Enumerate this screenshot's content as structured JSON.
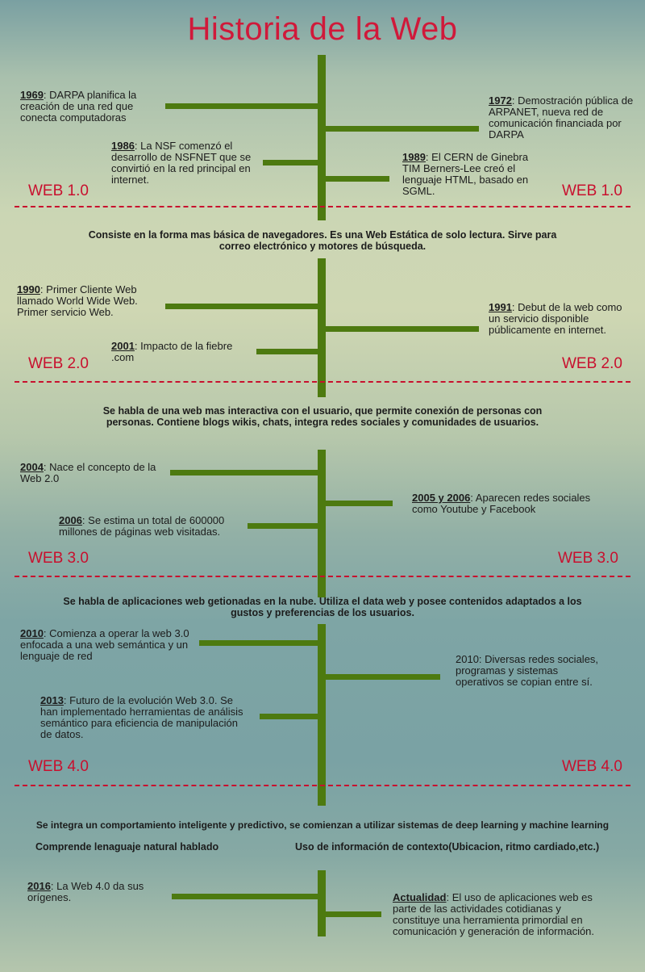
{
  "title": "Historia de la Web",
  "sections": [
    {
      "era": "WEB 1.0",
      "events": [
        {
          "year": "1969",
          "text": ": DARPA planifica la creación de una red que conecta computadoras"
        },
        {
          "year": "1972",
          "text": ": Demostración pública de ARPANET, nueva red de comunicación financiada por DARPA"
        },
        {
          "year": "1986",
          "text": ": La NSF comenzó el desarrollo  de NSFNET que se convirtió en la red principal en internet."
        },
        {
          "year": "1989",
          "text": ": El CERN de Ginebra TIM Berners-Lee creó el lenguaje HTML, basado en SGML."
        }
      ],
      "description": "Consiste en la forma mas básica de navegadores. Es una Web Estática de solo lectura. Sirve para correo electrónico y motores de búsqueda."
    },
    {
      "era": "WEB 2.0",
      "events": [
        {
          "year": "1990",
          "text": ": Primer Cliente Web llamado World Wide Web. Primer servicio Web."
        },
        {
          "year": "1991",
          "text": ": Debut de la web como un servicio disponible públicamente en internet."
        },
        {
          "year": "2001",
          "text": ": Impacto de la fiebre .com"
        }
      ],
      "description": "Se habla de una web mas interactiva con el usuario, que permite conexión de personas con personas. Contiene blogs wikis, chats, integra redes sociales y comunidades de usuarios."
    },
    {
      "era": "WEB 3.0",
      "events": [
        {
          "year": "2004",
          "text": ": Nace el concepto de la Web 2.0"
        },
        {
          "year": "2005 y 2006",
          "text": ": Aparecen redes sociales como Youtube y Facebook"
        },
        {
          "year": "2006",
          "text": ": Se estima un total de 600000 millones de páginas web visitadas."
        }
      ],
      "description": "Se habla de aplicaciones web getionadas en la nube. Utiliza el data web y posee contenidos adaptados a los gustos y preferencias de los usuarios."
    },
    {
      "era": "WEB 4.0",
      "events": [
        {
          "year": "2010",
          "text": ": Comienza a operar la web 3.0 enfocada a una web semántica y un lenguaje de red"
        },
        {
          "year": "",
          "text": "2010: Diversas redes sociales, programas y sistemas operativos se copian entre sí."
        },
        {
          "year": "2013",
          "text": ": Futuro de la evolución Web 3.0. Se han implementado herramientas de análisis semántico para eficiencia de manipulación de datos."
        }
      ],
      "description": "Se integra un comportamiento inteligente y predictivo, se comienzan a utilizar sistemas de deep learning y machine learning",
      "features": [
        "Comprende lenaguaje natural hablado",
        "Uso de información de contexto(Ubicacion, ritmo cardiado,etc.)"
      ]
    },
    {
      "events": [
        {
          "year": "2016",
          "text": ": La Web 4.0 da sus orígenes."
        },
        {
          "year": "Actualidad",
          "text": ": El uso de aplicaciones web es parte de las actividades cotidianas y constituye una herramienta primordial en comunicación y generación de información."
        }
      ]
    }
  ],
  "colors": {
    "accent": "#d0193a",
    "timeline": "#4d7a10"
  }
}
